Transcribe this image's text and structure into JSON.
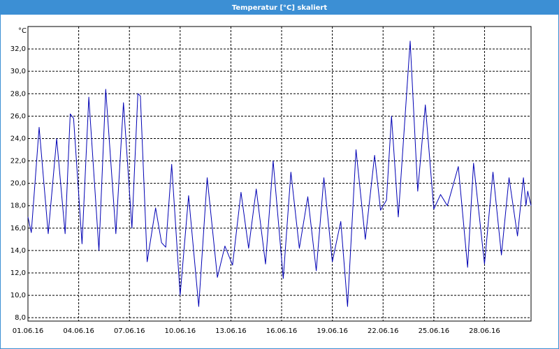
{
  "chart_data": {
    "type": "line",
    "title": "Temperatur [°C] skaliert",
    "y_label": "°C",
    "color": "#0000b4",
    "grid": true,
    "xlim": [
      1,
      30.75
    ],
    "ylim": [
      7.7,
      34
    ],
    "xticks": [
      {
        "value": 1,
        "label": "01.06.16"
      },
      {
        "value": 4,
        "label": "04.06.16"
      },
      {
        "value": 7,
        "label": "07.06.16"
      },
      {
        "value": 10,
        "label": "10.06.16"
      },
      {
        "value": 13,
        "label": "13.06.16"
      },
      {
        "value": 16,
        "label": "16.06.16"
      },
      {
        "value": 19,
        "label": "19.06.16"
      },
      {
        "value": 22,
        "label": "22.06.16"
      },
      {
        "value": 25,
        "label": "25.06.16"
      },
      {
        "value": 28,
        "label": "28.06.16"
      }
    ],
    "yticks": [
      {
        "value": 8,
        "label": "8,0"
      },
      {
        "value": 10,
        "label": "10,0"
      },
      {
        "value": 12,
        "label": "12,0"
      },
      {
        "value": 14,
        "label": "14,0"
      },
      {
        "value": 16,
        "label": "16,0"
      },
      {
        "value": 18,
        "label": "18,0"
      },
      {
        "value": 20,
        "label": "20,0"
      },
      {
        "value": 22,
        "label": "22,0"
      },
      {
        "value": 24,
        "label": "24,0"
      },
      {
        "value": 26,
        "label": "26,0"
      },
      {
        "value": 28,
        "label": "28,0"
      },
      {
        "value": 30,
        "label": "30,0"
      },
      {
        "value": 32,
        "label": "32,0"
      }
    ],
    "x": [
      1.0,
      1.2,
      1.66,
      2.2,
      2.7,
      3.2,
      3.5,
      3.7,
      4.2,
      4.6,
      5.2,
      5.6,
      6.2,
      6.65,
      7.15,
      7.5,
      7.65,
      8.05,
      8.55,
      8.9,
      9.15,
      9.5,
      10.0,
      10.5,
      11.1,
      11.6,
      12.2,
      12.65,
      13.1,
      13.6,
      14.05,
      14.5,
      15.05,
      15.5,
      16.1,
      16.55,
      17.05,
      17.55,
      18.05,
      18.5,
      19.0,
      19.5,
      19.9,
      20.4,
      20.95,
      21.5,
      21.85,
      22.2,
      22.5,
      22.9,
      23.6,
      24.05,
      24.5,
      25.0,
      25.4,
      25.8,
      26.45,
      27.0,
      27.35,
      28.0,
      28.5,
      29.0,
      29.45,
      29.95,
      30.3,
      30.45,
      30.55,
      30.75
    ],
    "values": [
      17,
      15.6,
      25,
      15.5,
      24,
      15.5,
      26.2,
      25.8,
      14.6,
      27.7,
      14,
      28.4,
      15.5,
      27.2,
      16,
      28,
      27.8,
      13,
      17.8,
      14.7,
      14.3,
      21.7,
      10,
      18.9,
      9,
      20.5,
      11.6,
      14.4,
      12.7,
      19.2,
      14.2,
      19.5,
      12.8,
      22,
      11.5,
      21,
      14.2,
      18.8,
      12.2,
      20.5,
      13,
      16.6,
      9,
      23,
      15,
      22.5,
      17.6,
      18.5,
      26,
      17,
      32.7,
      19.3,
      27,
      17.7,
      19,
      18,
      21.5,
      12.5,
      21.8,
      12.8,
      21,
      13.6,
      20.5,
      15.3,
      20.5,
      18,
      19.3,
      18
    ]
  }
}
